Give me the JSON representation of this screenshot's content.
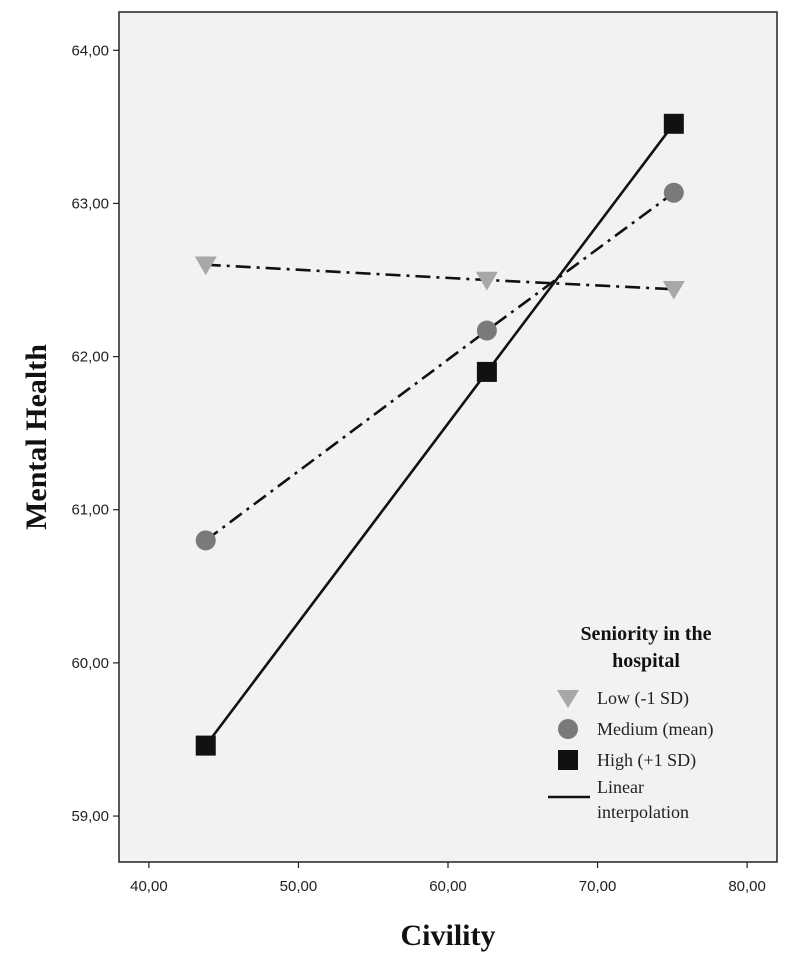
{
  "chart_data": {
    "type": "line",
    "title": "",
    "xlabel": "Civility",
    "ylabel": "Mental Health",
    "xlim": [
      38,
      82
    ],
    "ylim": [
      58.7,
      64.25
    ],
    "x_ticks": [
      40,
      50,
      60,
      70,
      80
    ],
    "x_tick_labels": [
      "40,00",
      "50,00",
      "60,00",
      "70,00",
      "80,00"
    ],
    "y_ticks": [
      59,
      60,
      61,
      62,
      63,
      64
    ],
    "y_tick_labels": [
      "59,00",
      "60,00",
      "61,00",
      "62,00",
      "63,00",
      "64,00"
    ],
    "grid": false,
    "legend_placement": "bottom-right",
    "legend_title": "Seniority in the hospital",
    "legend_title_lines": [
      "Seniority in the",
      "hospital"
    ],
    "legend_line_label": "Linear interpolation",
    "legend_line_label_lines": [
      "Linear",
      "interpolation"
    ],
    "colors": {
      "plot_background": "#f2f2f2",
      "low": "#a8a8a8",
      "medium": "#7a7a7a",
      "high": "#111111",
      "line": "#111111"
    },
    "series": [
      {
        "name": "Low (-1 SD)",
        "marker": "triangle-down",
        "line_style": "dash-dot",
        "x": [
          43.8,
          62.6,
          75.1
        ],
        "y": [
          62.6,
          62.5,
          62.44
        ]
      },
      {
        "name": "Medium (mean)",
        "marker": "circle",
        "line_style": "dash-dot",
        "x": [
          43.8,
          62.6,
          75.1
        ],
        "y": [
          60.8,
          62.17,
          63.07
        ]
      },
      {
        "name": "High (+1 SD)",
        "marker": "square",
        "line_style": "solid",
        "x": [
          43.8,
          62.6,
          75.1
        ],
        "y": [
          59.46,
          61.9,
          63.52
        ]
      }
    ]
  }
}
